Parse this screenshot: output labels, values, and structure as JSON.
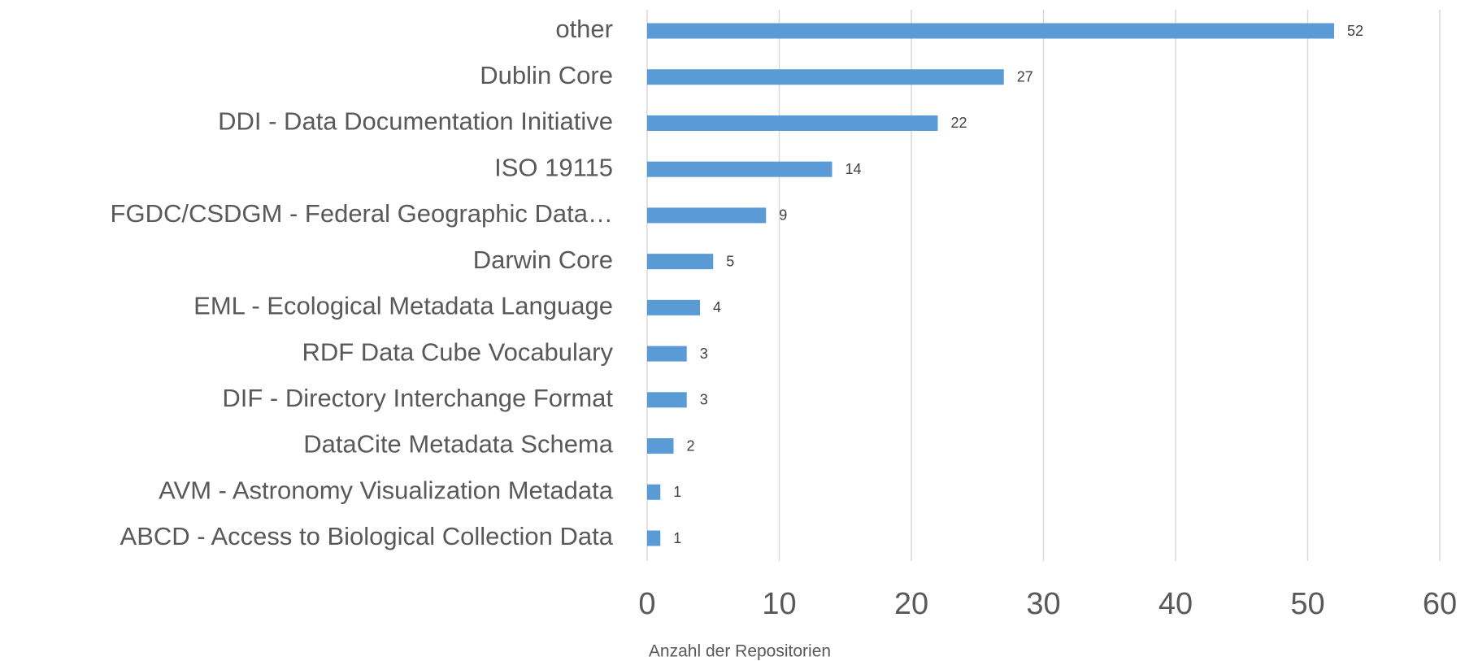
{
  "chart_data": {
    "type": "bar",
    "orientation": "horizontal",
    "categories": [
      "other",
      "Dublin Core",
      "DDI - Data Documentation Initiative",
      "ISO 19115",
      "FGDC/CSDGM - Federal Geographic Data…",
      "Darwin Core",
      "EML - Ecological Metadata Language",
      "RDF Data Cube Vocabulary",
      "DIF - Directory Interchange Format",
      "DataCite Metadata Schema",
      "AVM - Astronomy Visualization Metadata",
      "ABCD - Access to Biological Collection Data"
    ],
    "values": [
      52,
      27,
      22,
      14,
      9,
      5,
      4,
      3,
      3,
      2,
      1,
      1
    ],
    "color": "#5b9bd5",
    "x_label": "Anzahl der Repositorien",
    "xlim": [
      0,
      60
    ],
    "xticks": [
      0,
      10,
      20,
      30,
      40,
      50,
      60
    ],
    "grid": true
  }
}
